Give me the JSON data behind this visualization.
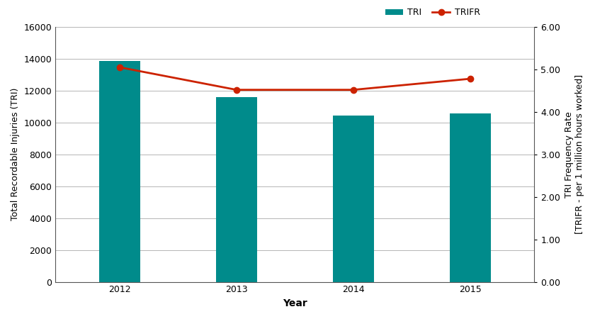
{
  "years": [
    2012,
    2013,
    2014,
    2015
  ],
  "tri_values": [
    13850,
    11600,
    10450,
    10550
  ],
  "trifr_values": [
    5.05,
    4.52,
    4.52,
    4.78
  ],
  "bar_color": "#008B8B",
  "line_color": "#cc2200",
  "marker_color": "#cc2200",
  "left_ylabel": "Total Recordable Injuries (TRI)",
  "right_ylabel_line1": "TRI Frequency Rate",
  "right_ylabel_line2": "[TRIFR - per 1 million hours worked]",
  "xlabel": "Year",
  "left_ylim": [
    0,
    16000
  ],
  "right_ylim": [
    0.0,
    6.0
  ],
  "left_yticks": [
    0,
    2000,
    4000,
    6000,
    8000,
    10000,
    12000,
    14000,
    16000
  ],
  "right_yticks": [
    0.0,
    1.0,
    2.0,
    3.0,
    4.0,
    5.0,
    6.0
  ],
  "legend_labels": [
    "TRI",
    "TRIFR"
  ],
  "bar_width": 0.35,
  "background_color": "none",
  "grid_color": "#aaaaaa",
  "label_fontsize": 9,
  "tick_fontsize": 9,
  "xlabel_fontsize": 10
}
